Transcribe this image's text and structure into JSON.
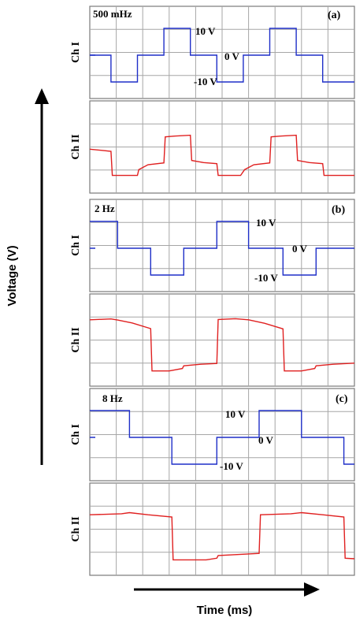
{
  "figure": {
    "y_axis_label": "Voltage (V)",
    "x_axis_label": "Time (ms)"
  },
  "colors": {
    "ch1": "#1f2fc8",
    "ch2": "#e02020",
    "grid": "#a6a6a6",
    "frame": "#7a7a7a",
    "text": "#000000"
  },
  "chart_data": [
    {
      "type": "line",
      "panel_tag": "(a)",
      "frequency_label": "500 mHz",
      "row_labels": [
        "Ch I",
        "Ch II"
      ],
      "level_labels": [
        "10 V",
        "0 V",
        "-10 V"
      ],
      "grid": true,
      "x_divisions": 10,
      "series": [
        {
          "name": "Ch I",
          "color": "#1f2fc8",
          "points": [
            [
              0,
              0
            ],
            [
              0.8,
              0
            ],
            [
              0.8,
              -10
            ],
            [
              1.8,
              -10
            ],
            [
              1.8,
              0
            ],
            [
              2.8,
              0
            ],
            [
              2.8,
              10
            ],
            [
              3.8,
              10
            ],
            [
              3.8,
              0
            ],
            [
              4.8,
              0
            ],
            [
              4.8,
              -10
            ],
            [
              5.8,
              -10
            ],
            [
              5.8,
              0
            ],
            [
              6.8,
              0
            ],
            [
              6.8,
              10
            ],
            [
              7.8,
              10
            ],
            [
              7.8,
              0
            ],
            [
              8.8,
              0
            ],
            [
              8.8,
              -10
            ],
            [
              10,
              -10
            ]
          ]
        },
        {
          "name": "Ch II",
          "color": "#e02020",
          "points": [
            [
              0,
              0.2
            ],
            [
              0.8,
              -0.6
            ],
            [
              0.85,
              -9.6
            ],
            [
              1.8,
              -9.6
            ],
            [
              1.85,
              -7.4
            ],
            [
              2.2,
              -5.6
            ],
            [
              2.8,
              -4.9
            ],
            [
              2.85,
              4.8
            ],
            [
              3.2,
              5.1
            ],
            [
              3.8,
              5.4
            ],
            [
              3.85,
              -4.0
            ],
            [
              4.3,
              -4.8
            ],
            [
              4.8,
              -5.2
            ],
            [
              4.85,
              -9.6
            ],
            [
              5.7,
              -9.6
            ],
            [
              5.85,
              -7.4
            ],
            [
              6.2,
              -5.6
            ],
            [
              6.8,
              -4.9
            ],
            [
              6.85,
              4.8
            ],
            [
              7.2,
              5.1
            ],
            [
              7.8,
              5.4
            ],
            [
              7.85,
              -4.0
            ],
            [
              8.3,
              -4.8
            ],
            [
              8.8,
              -5.2
            ],
            [
              8.85,
              -9.6
            ],
            [
              10,
              -9.6
            ]
          ]
        }
      ]
    },
    {
      "type": "line",
      "panel_tag": "(b)",
      "frequency_label": "2 Hz",
      "row_labels": [
        "Ch I",
        "Ch II"
      ],
      "level_labels": [
        "10 V",
        "0 V",
        "-10 V"
      ],
      "grid": true,
      "x_divisions": 10,
      "series": [
        {
          "name": "Ch I",
          "color": "#1f2fc8",
          "points": [
            [
              0,
              10
            ],
            [
              1.05,
              10
            ],
            [
              1.05,
              0
            ],
            [
              2.3,
              0
            ],
            [
              2.3,
              -10
            ],
            [
              3.55,
              -10
            ],
            [
              3.55,
              0
            ],
            [
              4.8,
              0
            ],
            [
              4.8,
              10
            ],
            [
              6.0,
              10
            ],
            [
              6.0,
              0
            ],
            [
              7.3,
              0
            ],
            [
              7.3,
              -10
            ],
            [
              8.55,
              -10
            ],
            [
              8.55,
              0
            ],
            [
              10,
              0
            ]
          ]
        },
        {
          "name": "Ch II",
          "color": "#e02020",
          "points": [
            [
              0,
              8.6
            ],
            [
              0.8,
              8.9
            ],
            [
              1.05,
              8.5
            ],
            [
              1.6,
              7.4
            ],
            [
              2.3,
              5.3
            ],
            [
              2.35,
              -10.5
            ],
            [
              3.0,
              -10.5
            ],
            [
              3.5,
              -9.6
            ],
            [
              3.55,
              -8.6
            ],
            [
              4.2,
              -8.0
            ],
            [
              4.8,
              -7.7
            ],
            [
              4.85,
              8.7
            ],
            [
              5.5,
              9.0
            ],
            [
              6.0,
              8.6
            ],
            [
              6.6,
              7.3
            ],
            [
              7.3,
              5.2
            ],
            [
              7.35,
              -10.5
            ],
            [
              8.0,
              -10.5
            ],
            [
              8.5,
              -9.6
            ],
            [
              8.55,
              -8.6
            ],
            [
              9.2,
              -8.0
            ],
            [
              10,
              -7.6
            ]
          ]
        }
      ]
    },
    {
      "type": "line",
      "panel_tag": "(c)",
      "frequency_label": "8 Hz",
      "row_labels": [
        "Ch I",
        "Ch II"
      ],
      "level_labels": [
        "10 V",
        "0 V",
        "-10 V"
      ],
      "grid": true,
      "x_divisions": 10,
      "series": [
        {
          "name": "Ch I",
          "color": "#1f2fc8",
          "points": [
            [
              0,
              10
            ],
            [
              1.5,
              10
            ],
            [
              1.5,
              0
            ],
            [
              3.1,
              0
            ],
            [
              3.1,
              -10
            ],
            [
              4.8,
              -10
            ],
            [
              4.8,
              0
            ],
            [
              6.4,
              0
            ],
            [
              6.4,
              10
            ],
            [
              8.0,
              10
            ],
            [
              8.0,
              0
            ],
            [
              9.6,
              0
            ],
            [
              9.6,
              -10
            ],
            [
              10,
              -10
            ]
          ]
        },
        {
          "name": "Ch II",
          "color": "#e02020",
          "points": [
            [
              0,
              6.4
            ],
            [
              1.2,
              6.8
            ],
            [
              1.5,
              7.2
            ],
            [
              2.2,
              6.4
            ],
            [
              3.1,
              5.6
            ],
            [
              3.15,
              -10.4
            ],
            [
              4.4,
              -10.4
            ],
            [
              4.8,
              -9.8
            ],
            [
              4.85,
              -8.8
            ],
            [
              6.0,
              -8.2
            ],
            [
              6.4,
              -8.0
            ],
            [
              6.45,
              6.4
            ],
            [
              7.6,
              6.8
            ],
            [
              8.0,
              7.2
            ],
            [
              8.8,
              6.4
            ],
            [
              9.6,
              5.6
            ],
            [
              9.65,
              -9.8
            ],
            [
              10,
              -10
            ]
          ]
        }
      ]
    }
  ]
}
